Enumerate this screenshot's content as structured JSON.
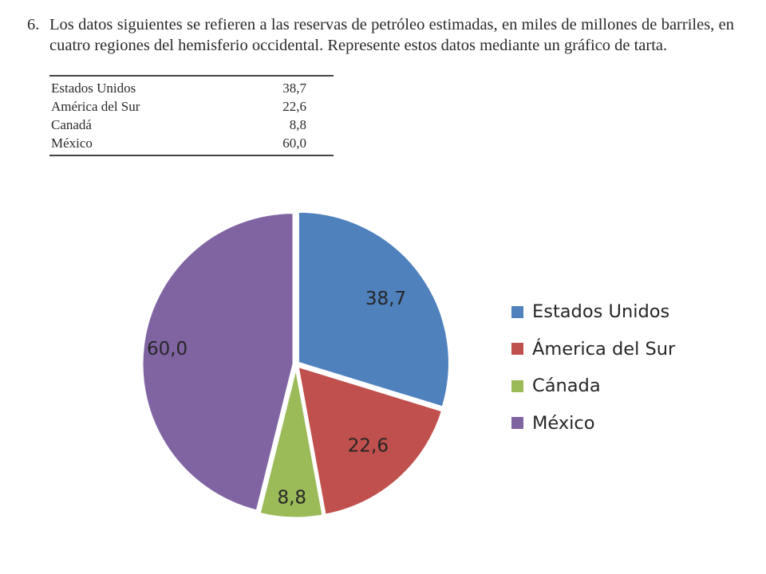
{
  "problem": {
    "number": "6.",
    "text": "Los datos siguientes se refieren a las reservas de petróleo estimadas, en miles de millones de barriles, en cuatro regiones del hemisferio occidental. Represente estos datos mediante un gráfico de tarta.",
    "table": [
      {
        "region": "Estados Unidos",
        "value": "38,7"
      },
      {
        "region": "América del Sur",
        "value": "22,6"
      },
      {
        "region": "Canadá",
        "value": "8,8"
      },
      {
        "region": "México",
        "value": "60,0"
      }
    ]
  },
  "chart_data": {
    "type": "pie",
    "title": "",
    "start_angle_deg": 0,
    "direction": "clockwise",
    "legend_position": "right",
    "slices": [
      {
        "label": "Estados Unidos",
        "value": 38.7,
        "display": "38,7",
        "color": "#4F81BD"
      },
      {
        "label": "Ámerica del Sur",
        "value": 22.6,
        "display": "22,6",
        "color": "#C0504D"
      },
      {
        "label": "Cánada",
        "value": 8.8,
        "display": "8,8",
        "color": "#9BBB59"
      },
      {
        "label": "México",
        "value": 60.0,
        "display": "60,0",
        "color": "#8064A2"
      }
    ]
  }
}
